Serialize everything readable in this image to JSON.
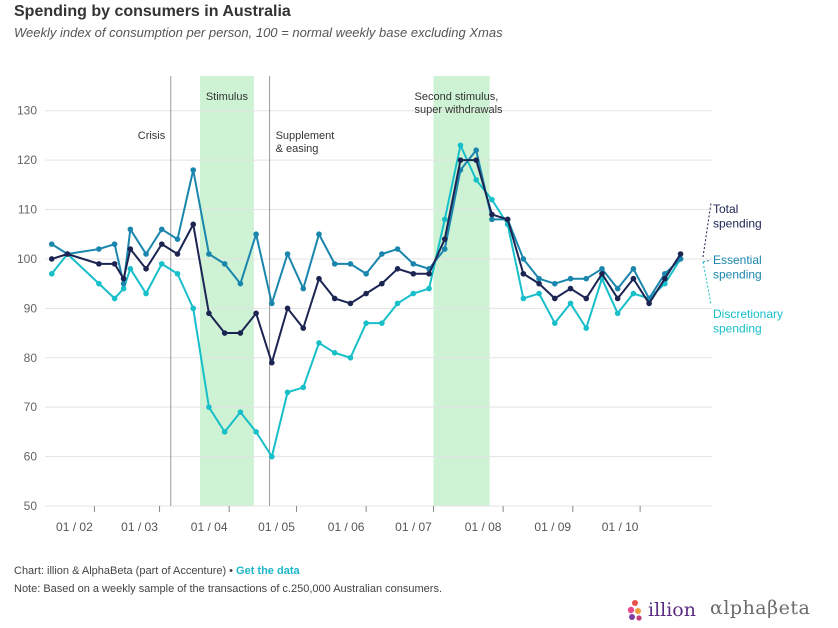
{
  "title": "Spending by consumers in Australia",
  "subtitle": "Weekly index of consumption per person, 100 = normal weekly base excluding Xmas",
  "colors": {
    "total": "#1c2452",
    "essential": "#1a86ad",
    "discretionary": "#17bfc9",
    "band": "#cdf2d4",
    "grid": "#e3e3e3",
    "vline": "#9a9a9a",
    "link": "#1bb6c9"
  },
  "chart_data": {
    "type": "line",
    "title": "Spending by consumers in Australia",
    "ylim": [
      50,
      135
    ],
    "yticks": [
      50,
      60,
      70,
      80,
      90,
      100,
      110,
      120,
      130
    ],
    "xlim": [
      "2020-01-10",
      "2020-11-02"
    ],
    "xticks": [
      {
        "date": "2020-02-01",
        "label": "01 / 02"
      },
      {
        "date": "2020-03-01",
        "label": "01 / 03"
      },
      {
        "date": "2020-04-01",
        "label": "01 / 04"
      },
      {
        "date": "2020-05-01",
        "label": "01 / 05"
      },
      {
        "date": "2020-06-01",
        "label": "01 / 06"
      },
      {
        "date": "2020-07-01",
        "label": "01 / 07"
      },
      {
        "date": "2020-08-01",
        "label": "01 / 08"
      },
      {
        "date": "2020-09-01",
        "label": "01 / 09"
      },
      {
        "date": "2020-10-01",
        "label": "01 / 10"
      }
    ],
    "grid": true,
    "bands": [
      {
        "start": "2020-03-19",
        "end": "2020-04-12",
        "label": "Stimulus"
      },
      {
        "start": "2020-07-01",
        "end": "2020-07-26",
        "label": "Second stimulus,\nsuper withdrawals"
      }
    ],
    "events": [
      {
        "date": "2020-03-06",
        "label": "Crisis"
      },
      {
        "date": "2020-04-19",
        "label": "Supplement\n& easing"
      }
    ],
    "x": [
      "2020-01-13",
      "2020-01-20",
      "2020-02-03",
      "2020-02-10",
      "2020-02-14",
      "2020-02-17",
      "2020-02-24",
      "2020-03-02",
      "2020-03-09",
      "2020-03-16",
      "2020-03-23",
      "2020-03-30",
      "2020-04-06",
      "2020-04-13",
      "2020-04-20",
      "2020-04-27",
      "2020-05-04",
      "2020-05-11",
      "2020-05-18",
      "2020-05-25",
      "2020-06-01",
      "2020-06-08",
      "2020-06-15",
      "2020-06-22",
      "2020-06-29",
      "2020-07-06",
      "2020-07-13",
      "2020-07-20",
      "2020-07-27",
      "2020-08-03",
      "2020-08-10",
      "2020-08-17",
      "2020-08-24",
      "2020-08-31",
      "2020-09-07",
      "2020-09-14",
      "2020-09-21",
      "2020-09-28",
      "2020-10-05",
      "2020-10-12",
      "2020-10-19",
      "2020-10-26"
    ],
    "series": [
      {
        "key": "total",
        "name": "Total\nspending",
        "values": [
          100,
          101,
          99,
          99,
          96,
          102,
          98,
          103,
          101,
          107,
          89,
          85,
          85,
          89,
          79,
          90,
          86,
          96,
          92,
          91,
          93,
          95,
          98,
          97,
          97,
          104,
          120,
          120,
          109,
          108,
          97,
          95,
          92,
          94,
          92,
          97,
          92,
          96,
          91,
          96,
          101,
          null
        ]
      },
      {
        "key": "essential",
        "name": "Essential\nspending",
        "values": [
          103,
          101,
          102,
          103,
          95,
          106,
          101,
          106,
          104,
          118,
          101,
          99,
          95,
          105,
          91,
          101,
          94,
          105,
          99,
          99,
          97,
          101,
          102,
          99,
          98,
          102,
          118,
          122,
          108,
          108,
          100,
          96,
          95,
          96,
          96,
          98,
          94,
          98,
          92,
          97,
          100,
          null
        ]
      },
      {
        "key": "discretionary",
        "name": "Discretionary\nspending",
        "values": [
          97,
          101,
          95,
          92,
          94,
          98,
          93,
          99,
          97,
          90,
          70,
          65,
          69,
          65,
          60,
          73,
          74,
          83,
          81,
          80,
          87,
          87,
          91,
          93,
          94,
          108,
          123,
          116,
          112,
          107,
          92,
          93,
          87,
          91,
          86,
          96,
          89,
          93,
          92,
          95,
          100,
          null
        ]
      }
    ]
  },
  "footer": {
    "credit": "Chart: illion & AlphaBeta (part of Accenture)",
    "separator": "•",
    "link": "Get the data",
    "note": "Note: Based on a weekly sample of the transactions of c.250,000 Australian consumers."
  },
  "logos": {
    "illion": "illion",
    "alphabeta": "αlphaβeta"
  }
}
